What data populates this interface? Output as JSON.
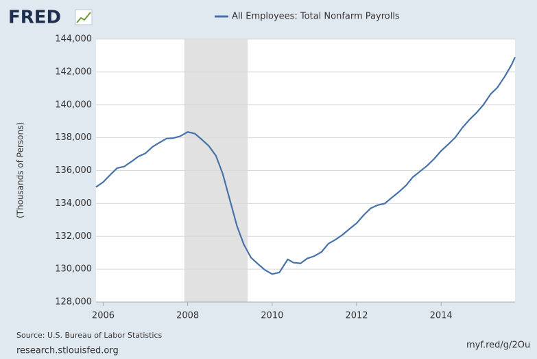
{
  "chart_data": {
    "type": "line",
    "logo": "FRED",
    "ylabel": "(Thousands of Persons)",
    "source": "Source: U.S. Bureau of Labor Statistics",
    "site": "research.stlouisfed.org",
    "short_link": "myf.red/g/2Ou",
    "x": [
      2005.83,
      2006.0,
      2006.17,
      2006.33,
      2006.5,
      2006.67,
      2006.83,
      2007.0,
      2007.17,
      2007.33,
      2007.5,
      2007.67,
      2007.83,
      2008.0,
      2008.17,
      2008.33,
      2008.5,
      2008.67,
      2008.83,
      2009.0,
      2009.17,
      2009.33,
      2009.5,
      2009.67,
      2009.83,
      2010.0,
      2010.17,
      2010.37,
      2010.5,
      2010.67,
      2010.83,
      2011.0,
      2011.17,
      2011.33,
      2011.5,
      2011.67,
      2011.83,
      2012.0,
      2012.17,
      2012.33,
      2012.5,
      2012.67,
      2012.83,
      2013.0,
      2013.17,
      2013.33,
      2013.5,
      2013.67,
      2013.83,
      2014.0,
      2014.17,
      2014.33,
      2014.5,
      2014.67,
      2014.83,
      2015.0,
      2015.17,
      2015.33,
      2015.5,
      2015.67,
      2015.75
    ],
    "series": [
      {
        "name": "All Employees: Total Nonfarm Payrolls",
        "color": "#4572a7",
        "values": [
          135000,
          135300,
          135750,
          136150,
          136250,
          136550,
          136850,
          137050,
          137450,
          137700,
          137950,
          137980,
          138100,
          138350,
          138250,
          137900,
          137500,
          136900,
          135800,
          134200,
          132600,
          131500,
          130700,
          130300,
          129950,
          129700,
          129800,
          130600,
          130400,
          130350,
          130650,
          130800,
          131050,
          131550,
          131800,
          132100,
          132450,
          132800,
          133300,
          133700,
          133900,
          134000,
          134350,
          134700,
          135100,
          135600,
          135950,
          136300,
          136700,
          137200,
          137600,
          138000,
          138600,
          139100,
          139500,
          140000,
          140650,
          141050,
          141700,
          142450,
          142900
        ]
      }
    ],
    "xlim": [
      2005.83,
      2015.75
    ],
    "xticks": [
      2006,
      2008,
      2010,
      2012,
      2014
    ],
    "ylim": [
      128000,
      144000
    ],
    "yticks": [
      {
        "value": 128000,
        "label": "128,000"
      },
      {
        "value": 130000,
        "label": "130,000"
      },
      {
        "value": 132000,
        "label": "132,000"
      },
      {
        "value": 134000,
        "label": "134,000"
      },
      {
        "value": 136000,
        "label": "136,000"
      },
      {
        "value": 138000,
        "label": "138,000"
      },
      {
        "value": 140000,
        "label": "140,000"
      },
      {
        "value": 142000,
        "label": "142,000"
      },
      {
        "value": 144000,
        "label": "144,000"
      }
    ],
    "shaded_regions": [
      [
        2007.92,
        2009.42
      ]
    ],
    "grid": true
  }
}
